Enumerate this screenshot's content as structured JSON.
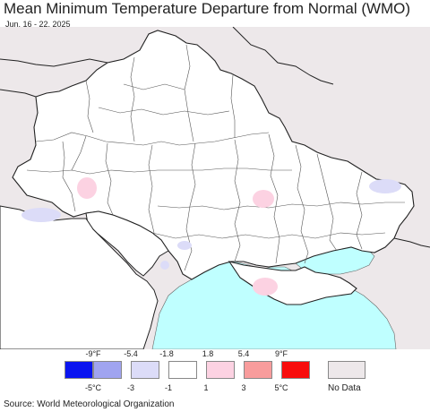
{
  "title": "Mean Minimum Temperature Departure from Normal (WMO)",
  "date_range": "Jun. 16 - 22, 2025",
  "legend": {
    "fahrenheit_ticks": [
      "-9°F",
      "-5.4",
      "-1.8",
      "1.8",
      "5.4",
      "9°F"
    ],
    "celsius_ticks": [
      "-5°C",
      "-3",
      "-1",
      "1",
      "3",
      "5°C"
    ],
    "colors": [
      "#0a14f0",
      "#a0a4f0",
      "#dcdcf8",
      "#ffffff",
      "#fcd2e2",
      "#f89c9c",
      "#f80c0c"
    ],
    "no_data_label": "No Data",
    "no_data_color": "#ede8ea"
  },
  "map": {
    "sea_color": "#bfffff",
    "no_data_color": "#ede8ea",
    "land_color": "#ffffff"
  },
  "source": "Source: World Meteorological Organization"
}
